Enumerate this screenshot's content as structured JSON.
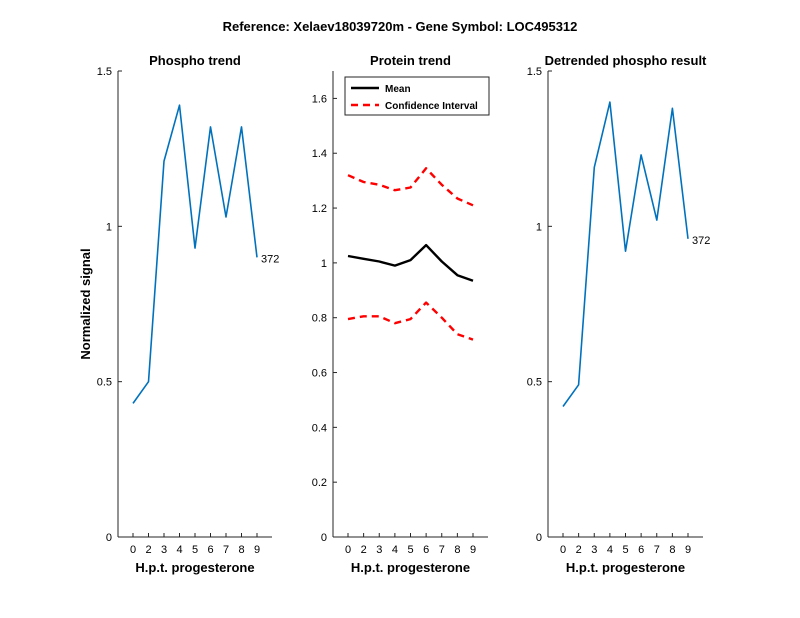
{
  "suptitle": "Reference:  Xelaev18039720m - Gene Symbol:  LOC495312",
  "colors": {
    "phospho": "#0072BD",
    "mean": "#000000",
    "ci": "#FF0000",
    "axis": "#262626"
  },
  "chart_data": [
    {
      "type": "line",
      "title": "Phospho trend",
      "xlabel": "H.p.t. progesterone",
      "ylabel": "Normalized signal",
      "categories": [
        "0",
        "2",
        "3",
        "4",
        "5",
        "6",
        "7",
        "8",
        "9"
      ],
      "ylim": [
        0,
        1.5
      ],
      "yticks": [
        0,
        0.5,
        1,
        1.5
      ],
      "ytick_labels": [
        "0",
        "0.5",
        "1",
        "1.5"
      ],
      "series": [
        {
          "name": "372",
          "values": [
            0.43,
            0.5,
            1.21,
            1.39,
            0.93,
            1.32,
            1.03,
            1.32,
            0.9
          ]
        }
      ],
      "end_label": "372"
    },
    {
      "type": "line",
      "title": "Protein trend",
      "xlabel": "H.p.t. progesterone",
      "ylabel": "",
      "categories": [
        "0",
        "2",
        "3",
        "4",
        "5",
        "6",
        "7",
        "8",
        "9"
      ],
      "ylim": [
        0,
        1.7
      ],
      "yticks": [
        0,
        0.2,
        0.4,
        0.6,
        0.8,
        1,
        1.2,
        1.4,
        1.6
      ],
      "ytick_labels": [
        "0",
        "0.2",
        "0.4",
        "0.6",
        "0.8",
        "1",
        "1.2",
        "1.4",
        "1.6"
      ],
      "legend": {
        "location": "top-left",
        "entries": [
          "Mean",
          "Confidence Interval"
        ]
      },
      "series": [
        {
          "name": "Mean",
          "values": [
            1.025,
            1.015,
            1.005,
            0.99,
            1.01,
            1.065,
            1.005,
            0.955,
            0.935
          ]
        },
        {
          "name": "Confidence Interval (upper)",
          "values": [
            1.32,
            1.295,
            1.285,
            1.265,
            1.275,
            1.345,
            1.285,
            1.235,
            1.21
          ]
        },
        {
          "name": "Confidence Interval (lower)",
          "values": [
            0.795,
            0.805,
            0.805,
            0.78,
            0.795,
            0.855,
            0.8,
            0.74,
            0.72
          ]
        }
      ]
    },
    {
      "type": "line",
      "title": "Detrended phospho result",
      "xlabel": "H.p.t. progesterone",
      "ylabel": "",
      "categories": [
        "0",
        "2",
        "3",
        "4",
        "5",
        "6",
        "7",
        "8",
        "9"
      ],
      "ylim": [
        0,
        1.5
      ],
      "yticks": [
        0,
        0.5,
        1,
        1.5
      ],
      "ytick_labels": [
        "0",
        "0.5",
        "1",
        "1.5"
      ],
      "series": [
        {
          "name": "372",
          "values": [
            0.42,
            0.49,
            1.19,
            1.4,
            0.92,
            1.23,
            1.02,
            1.38,
            0.96
          ]
        }
      ],
      "end_label": "372"
    }
  ]
}
